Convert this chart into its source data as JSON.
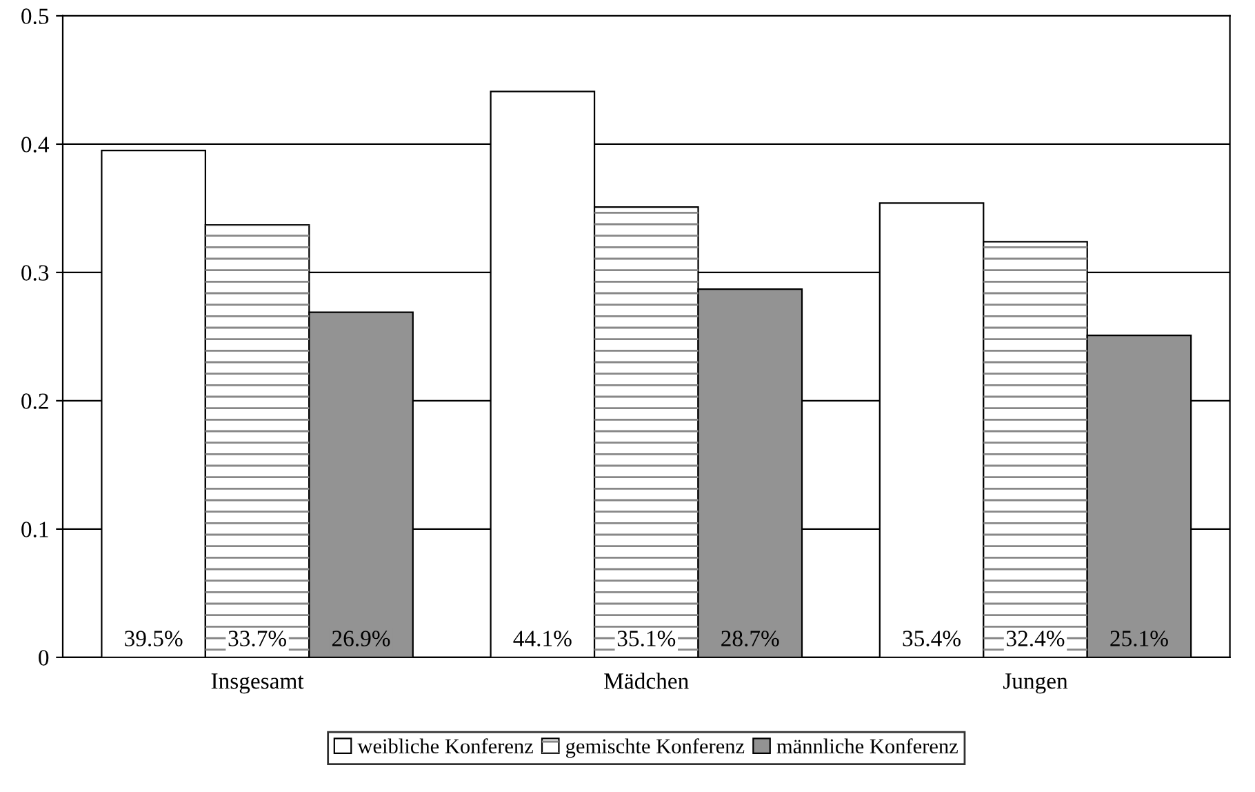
{
  "chart_data": {
    "type": "bar",
    "categories": [
      "Insgesamt",
      "Mädchen",
      "Jungen"
    ],
    "series": [
      {
        "name": "weibliche Konferenz",
        "color": "#ffffff",
        "values": [
          0.395,
          0.441,
          0.354
        ],
        "value_labels": [
          "39.5%",
          "44.1%",
          "35.4%"
        ]
      },
      {
        "name": "gemischte Konferenz",
        "color": "#ffffff",
        "values": [
          0.337,
          0.351,
          0.324
        ],
        "value_labels": [
          "33.7%",
          "35.1%",
          "32.4%"
        ]
      },
      {
        "name": "männliche Konferenz",
        "color": "#939393",
        "values": [
          0.269,
          0.287,
          0.251
        ],
        "value_labels": [
          "26.9%",
          "28.7%",
          "25.1%"
        ]
      }
    ],
    "ylim": [
      0,
      0.5
    ],
    "yticks": [
      0,
      0.1,
      0.2,
      0.3,
      0.4,
      0.5
    ],
    "grid": "y",
    "legend": "bottom"
  }
}
